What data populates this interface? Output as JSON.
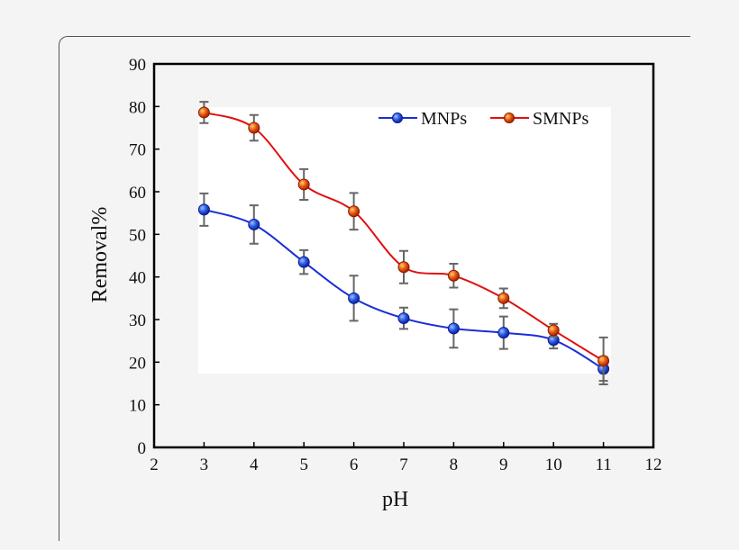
{
  "chart_data": {
    "type": "line",
    "xlabel": "pH",
    "ylabel": "Removal%",
    "xlim": [
      2,
      12
    ],
    "ylim": [
      0,
      90
    ],
    "xticks": [
      2,
      3,
      4,
      5,
      6,
      7,
      8,
      9,
      10,
      11,
      12
    ],
    "yticks": [
      0,
      10,
      20,
      30,
      40,
      50,
      60,
      70,
      80,
      90
    ],
    "grid": false,
    "legend_position": "top-right",
    "x": [
      3,
      4,
      5,
      6,
      7,
      8,
      9,
      10,
      11
    ],
    "series": [
      {
        "name": "MNPs",
        "color": "#1a2fd6",
        "values": [
          55.8,
          52.3,
          43.5,
          35.0,
          30.3,
          27.9,
          26.9,
          25.2,
          18.4
        ],
        "error": [
          3.8,
          4.5,
          2.8,
          5.3,
          2.5,
          4.5,
          3.8,
          2.0,
          2.8
        ]
      },
      {
        "name": "SMNPs",
        "color": "#e01010",
        "values": [
          78.6,
          75.0,
          61.7,
          55.4,
          42.3,
          40.3,
          35.0,
          27.5,
          20.3
        ],
        "error": [
          2.5,
          3.0,
          3.6,
          4.3,
          3.8,
          2.8,
          2.3,
          1.5,
          5.5
        ]
      }
    ]
  }
}
